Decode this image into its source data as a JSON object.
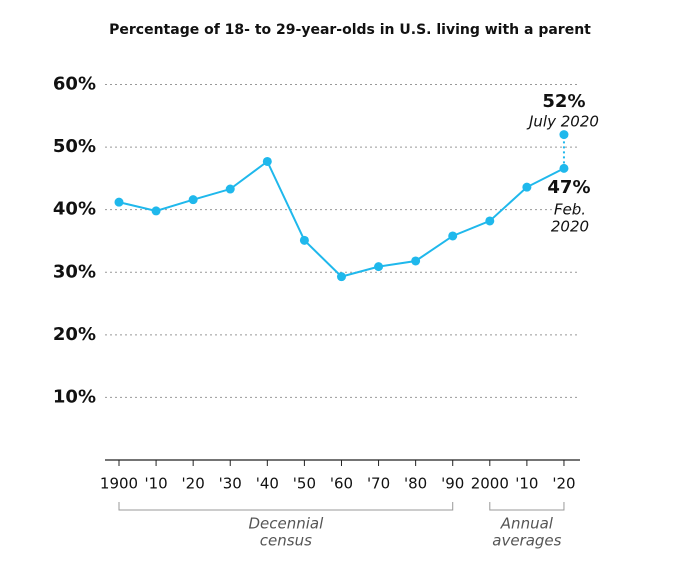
{
  "chart_data": {
    "type": "line",
    "title": "Percentage of 18- to 29-year-olds in U.S. living with a parent",
    "categories": [
      "1900",
      "'10",
      "'20",
      "'30",
      "'40",
      "'50",
      "'60",
      "'70",
      "'80",
      "'90",
      "2000",
      "'10",
      "'20"
    ],
    "values": [
      41.2,
      39.8,
      41.6,
      43.3,
      47.7,
      35.1,
      29.3,
      30.9,
      31.8,
      35.8,
      38.2,
      43.6,
      46.6
    ],
    "value_labels": [
      null,
      null,
      null,
      null,
      null,
      null,
      null,
      null,
      null,
      null,
      null,
      null,
      "47%"
    ],
    "value_label_date": [
      "Feb.",
      "2020"
    ],
    "july_2020": {
      "value": 52,
      "label": "52%",
      "date": "July 2020"
    },
    "color": "#1fb8ec",
    "ylim": [
      0,
      62
    ],
    "yticks": [
      {
        "value": 10,
        "label": "10%"
      },
      {
        "value": 20,
        "label": "20%"
      },
      {
        "value": 30,
        "label": "30%"
      },
      {
        "value": 40,
        "label": "40%"
      },
      {
        "value": 50,
        "label": "50%"
      },
      {
        "value": 60,
        "label": "60%"
      }
    ],
    "grid": true,
    "brackets": [
      {
        "label": [
          "Decennial",
          "census"
        ],
        "from": 0,
        "to": 9
      },
      {
        "label": [
          "Annual",
          "averages"
        ],
        "from": 10,
        "to": 12
      }
    ]
  }
}
